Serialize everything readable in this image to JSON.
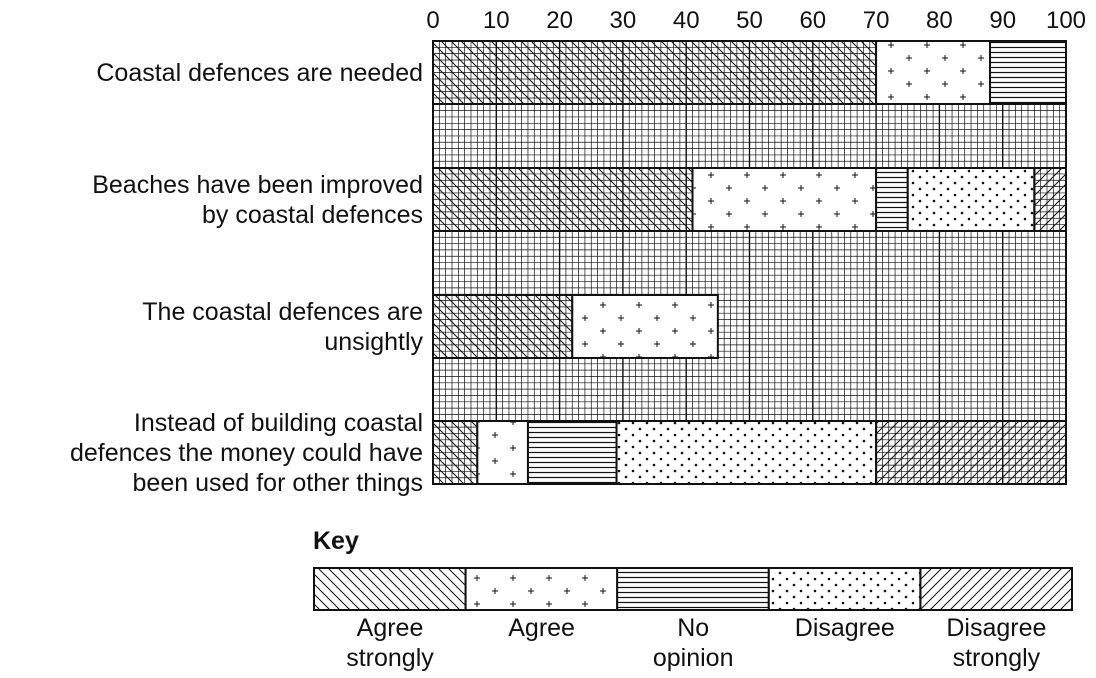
{
  "chart_data": {
    "type": "bar",
    "stacked": true,
    "orientation": "horizontal",
    "xlim": [
      0,
      100
    ],
    "x_ticks": [
      "0",
      "10",
      "20",
      "30",
      "40",
      "50",
      "60",
      "70",
      "80",
      "90",
      "100"
    ],
    "grid": true,
    "categories": [
      [
        "Coastal defences are needed"
      ],
      [
        "Beaches have been improved",
        "by coastal defences"
      ],
      [
        "The coastal defences are",
        "unsightly"
      ],
      [
        "Instead of building coastal",
        "defences the money could have",
        "been used for other things"
      ]
    ],
    "series": [
      {
        "name": [
          "Agree",
          "strongly"
        ],
        "pattern": "backslash-hatch",
        "values": [
          70,
          41,
          22,
          7
        ]
      },
      {
        "name": [
          "Agree"
        ],
        "pattern": "plus-signs",
        "values": [
          18,
          29,
          23,
          8
        ]
      },
      {
        "name": [
          "No",
          "opinion"
        ],
        "pattern": "horizontal-lines",
        "values": [
          12,
          5,
          0,
          14
        ]
      },
      {
        "name": [
          "Disagree"
        ],
        "pattern": "dots",
        "values": [
          0,
          20,
          0,
          41
        ]
      },
      {
        "name": [
          "Disagree",
          "strongly"
        ],
        "pattern": "forward-slash-hatch",
        "values": [
          0,
          5,
          0,
          30
        ]
      }
    ],
    "legend": {
      "title": "Key",
      "position": "bottom"
    }
  }
}
